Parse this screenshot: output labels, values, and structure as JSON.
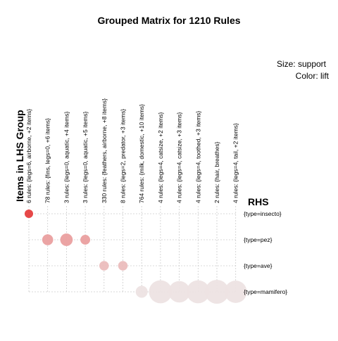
{
  "chart_data": {
    "type": "scatter",
    "title": "Grouped Matrix for 1210 Rules",
    "legend": {
      "size_label": "Size: support",
      "color_label": "Color: lift",
      "placement": "top-right"
    },
    "ylabel": "Items in LHS Group",
    "xlabel": "RHS",
    "lhs_groups": [
      "6 rules: {legs=6, airborne, +2 items}",
      "78 rules: {fins, legs=0, +6 items}",
      "3 rules: {legs=0, aquatic, +4 items}",
      "3 rules: {legs=0, aquatic, +5 items}",
      "330 rules: {feathers, airborne, +8 items}",
      "8 rules: {legs=2, predator, +3 items}",
      "764 rules: {milk, domestic, +10 items}",
      "4 rules: {legs=4, catsize, +2 items}",
      "4 rules: {legs=4, catsize, +3 items}",
      "4 rules: {legs=4, toothed, +3 items}",
      "2 rules: {hair, breathes}",
      "4 rules: {legs=4, tail, +2 items}"
    ],
    "rhs": [
      "{type=insecto}",
      "{type=pez}",
      "{type=ave}",
      "{type=mamifero}"
    ],
    "grid": true,
    "points": [
      {
        "lhs": 0,
        "rhs": 0,
        "size": 0.3,
        "lift": 1.0
      },
      {
        "lhs": 1,
        "rhs": 1,
        "size": 0.5,
        "lift": 0.45
      },
      {
        "lhs": 2,
        "rhs": 1,
        "size": 0.65,
        "lift": 0.45
      },
      {
        "lhs": 3,
        "rhs": 1,
        "size": 0.4,
        "lift": 0.45
      },
      {
        "lhs": 4,
        "rhs": 2,
        "size": 0.38,
        "lift": 0.28
      },
      {
        "lhs": 5,
        "rhs": 2,
        "size": 0.38,
        "lift": 0.28
      },
      {
        "lhs": 6,
        "rhs": 3,
        "size": 0.6,
        "lift": 0.06
      },
      {
        "lhs": 7,
        "rhs": 3,
        "size": 0.95,
        "lift": 0.06
      },
      {
        "lhs": 8,
        "rhs": 3,
        "size": 0.85,
        "lift": 0.06
      },
      {
        "lhs": 9,
        "rhs": 3,
        "size": 0.95,
        "lift": 0.06
      },
      {
        "lhs": 10,
        "rhs": 3,
        "size": 1.0,
        "lift": 0.06
      },
      {
        "lhs": 11,
        "rhs": 3,
        "size": 0.9,
        "lift": 0.06
      }
    ]
  }
}
